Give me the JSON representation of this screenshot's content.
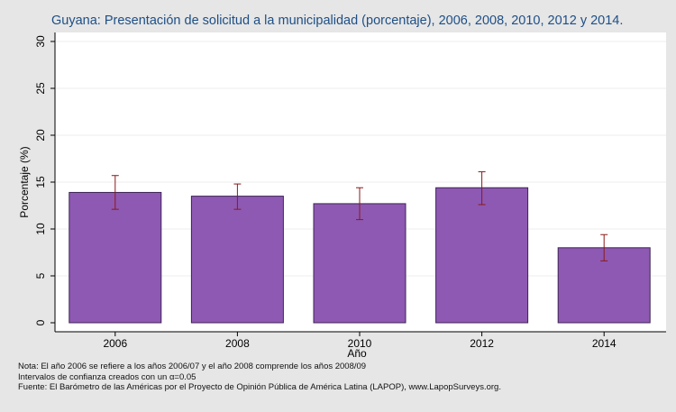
{
  "chart_data": {
    "type": "bar",
    "title": "Guyana: Presentación de solicitud a la municipalidad (porcentaje), 2006, 2008, 2010, 2012 y 2014.",
    "xlabel": "Año",
    "ylabel": "Porcentaje (%)",
    "categories": [
      "2006",
      "2008",
      "2010",
      "2012",
      "2014"
    ],
    "values": [
      13.9,
      13.5,
      12.7,
      14.4,
      8.0
    ],
    "ci_low": [
      12.1,
      12.1,
      11.0,
      12.6,
      6.6
    ],
    "ci_high": [
      15.7,
      14.8,
      14.4,
      16.1,
      9.4
    ],
    "ylim": [
      0,
      30
    ],
    "yticks": [
      0,
      5,
      10,
      15,
      20,
      25,
      30
    ],
    "grid": true,
    "legend": "none",
    "colors": {
      "bar_fill": "#8e59b3",
      "bar_stroke": "#3c2453",
      "error_bar": "#8b1a1a",
      "plot_bg": "#ffffff",
      "page_bg": "#e6e6e6",
      "title": "#1e4f86"
    }
  },
  "notes": {
    "line1": "Nota: El año 2006 se refiere a los años 2006/07 y el año 2008 comprende los años 2008/09",
    "line2": "Intervalos de confianza creados con un α=0.05",
    "line3": "Fuente: El Barómetro de las Américas por el Proyecto de Opinión Pública de América Latina (LAPOP), www.LapopSurveys.org."
  }
}
